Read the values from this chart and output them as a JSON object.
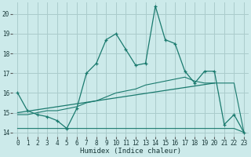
{
  "xlabel": "Humidex (Indice chaleur)",
  "bg_color": "#cceaea",
  "grid_color": "#aacccc",
  "line_color": "#1a7a6e",
  "xlim": [
    -0.5,
    23.5
  ],
  "ylim": [
    13.8,
    20.6
  ],
  "xticks": [
    0,
    1,
    2,
    3,
    4,
    5,
    6,
    7,
    8,
    9,
    10,
    11,
    12,
    13,
    14,
    15,
    16,
    17,
    18,
    19,
    20,
    21,
    22,
    23
  ],
  "yticks": [
    14,
    15,
    16,
    17,
    18,
    19,
    20
  ],
  "line1_x": [
    0,
    1,
    2,
    3,
    4,
    5,
    6,
    7,
    8,
    9,
    10,
    11,
    12,
    13,
    14,
    15,
    16,
    17,
    18,
    19,
    20,
    21,
    22,
    23
  ],
  "line1_y": [
    16.0,
    15.1,
    14.9,
    14.8,
    14.6,
    14.2,
    15.2,
    17.0,
    17.5,
    18.7,
    19.0,
    18.2,
    17.4,
    17.5,
    20.4,
    18.7,
    18.5,
    17.1,
    16.5,
    17.1,
    17.1,
    14.4,
    14.9,
    14.0
  ],
  "line2_x": [
    0,
    1,
    2,
    3,
    4,
    5,
    6,
    7,
    8,
    9,
    10,
    11,
    12,
    13,
    14,
    15,
    16,
    17,
    18,
    19,
    20,
    21,
    22,
    23
  ],
  "line2_y": [
    14.2,
    14.2,
    14.2,
    14.2,
    14.2,
    14.2,
    14.2,
    14.2,
    14.2,
    14.2,
    14.2,
    14.2,
    14.2,
    14.2,
    14.2,
    14.2,
    14.2,
    14.2,
    14.2,
    14.2,
    14.2,
    14.2,
    14.2,
    14.0
  ],
  "line3_x": [
    0,
    1,
    2,
    3,
    4,
    5,
    6,
    7,
    8,
    9,
    10,
    11,
    12,
    13,
    14,
    15,
    16,
    17,
    18,
    19,
    20,
    21,
    22,
    23
  ],
  "line3_y": [
    14.9,
    14.9,
    15.0,
    15.1,
    15.1,
    15.2,
    15.3,
    15.5,
    15.6,
    15.8,
    16.0,
    16.1,
    16.2,
    16.4,
    16.5,
    16.6,
    16.7,
    16.8,
    16.6,
    16.5,
    16.5,
    16.5,
    16.5,
    14.0
  ],
  "line4_x": [
    0,
    20
  ],
  "line4_y": [
    15.0,
    16.5
  ]
}
